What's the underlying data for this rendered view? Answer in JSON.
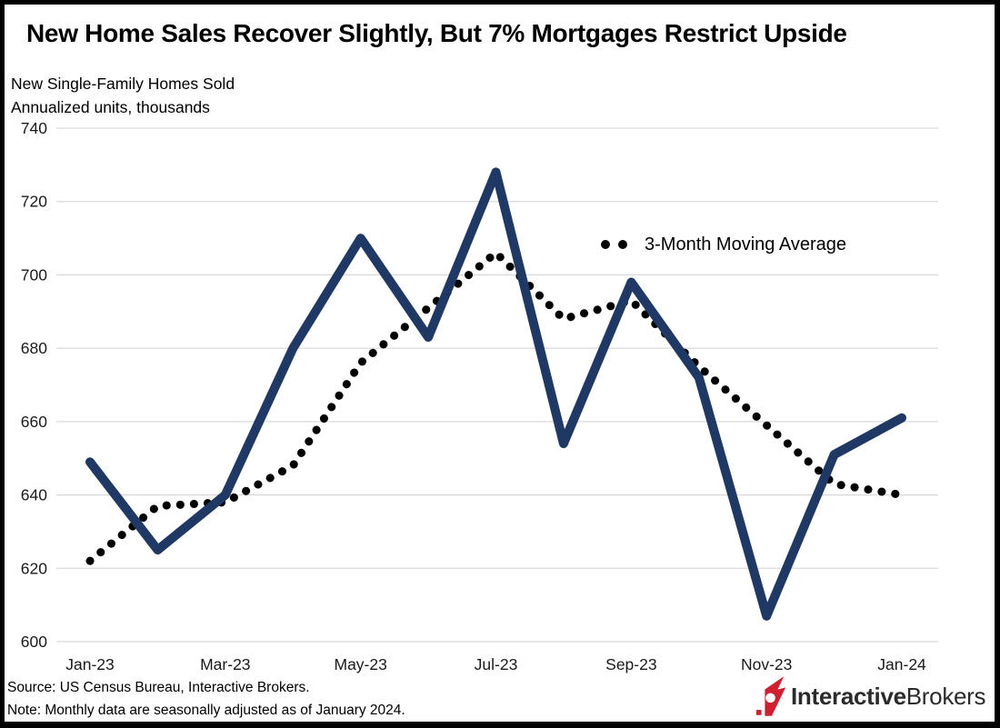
{
  "chart_data": {
    "type": "line",
    "title": "New Home Sales Recover Slightly, But 7% Mortgages Restrict Upside",
    "subtitle_line1": "New Single-Family Homes Sold",
    "subtitle_line2": "Annualized units, thousands",
    "categories": [
      "Jan-23",
      "Feb-23",
      "Mar-23",
      "Apr-23",
      "May-23",
      "Jun-23",
      "Jul-23",
      "Aug-23",
      "Sep-23",
      "Oct-23",
      "Nov-23",
      "Dec-23",
      "Jan-24"
    ],
    "series": [
      {
        "name": "New single-family homes sold (monthly)",
        "style": "solid",
        "color": "#1f3864",
        "values": [
          649,
          625,
          640,
          680,
          710,
          683,
          728,
          654,
          698,
          672,
          607,
          651,
          661
        ]
      },
      {
        "name": "3-Month Moving Average",
        "style": "dotted",
        "color": "#000000",
        "values": [
          622,
          637,
          638,
          648,
          676,
          691,
          706,
          688,
          693,
          675,
          659,
          643,
          640
        ]
      }
    ],
    "x_tick_labels": [
      "Jan-23",
      "Mar-23",
      "May-23",
      "Jul-23",
      "Sep-23",
      "Nov-23",
      "Jan-24"
    ],
    "y_ticks": [
      740,
      720,
      700,
      680,
      660,
      640,
      620,
      600
    ],
    "ylim": [
      600,
      740
    ],
    "grid": "horizontal",
    "legend_label": "3-Month Moving Average",
    "legend_position": "inside-upper-right"
  },
  "footer": {
    "source": "Source: US Census Bureau, Interactive Brokers.",
    "note": "Note: Monthly data are seasonally adjusted as of January 2024."
  },
  "logo": {
    "brand_bold": "Interactive",
    "brand_regular": "Brokers"
  },
  "colors": {
    "line_navy": "#1f3864",
    "dot_black": "#000000",
    "gridline": "#d9d9d9",
    "logo_red": "#cf2031",
    "logo_text": "#2b2b2b",
    "background": "#ffffff",
    "frame_border": "#000000"
  }
}
